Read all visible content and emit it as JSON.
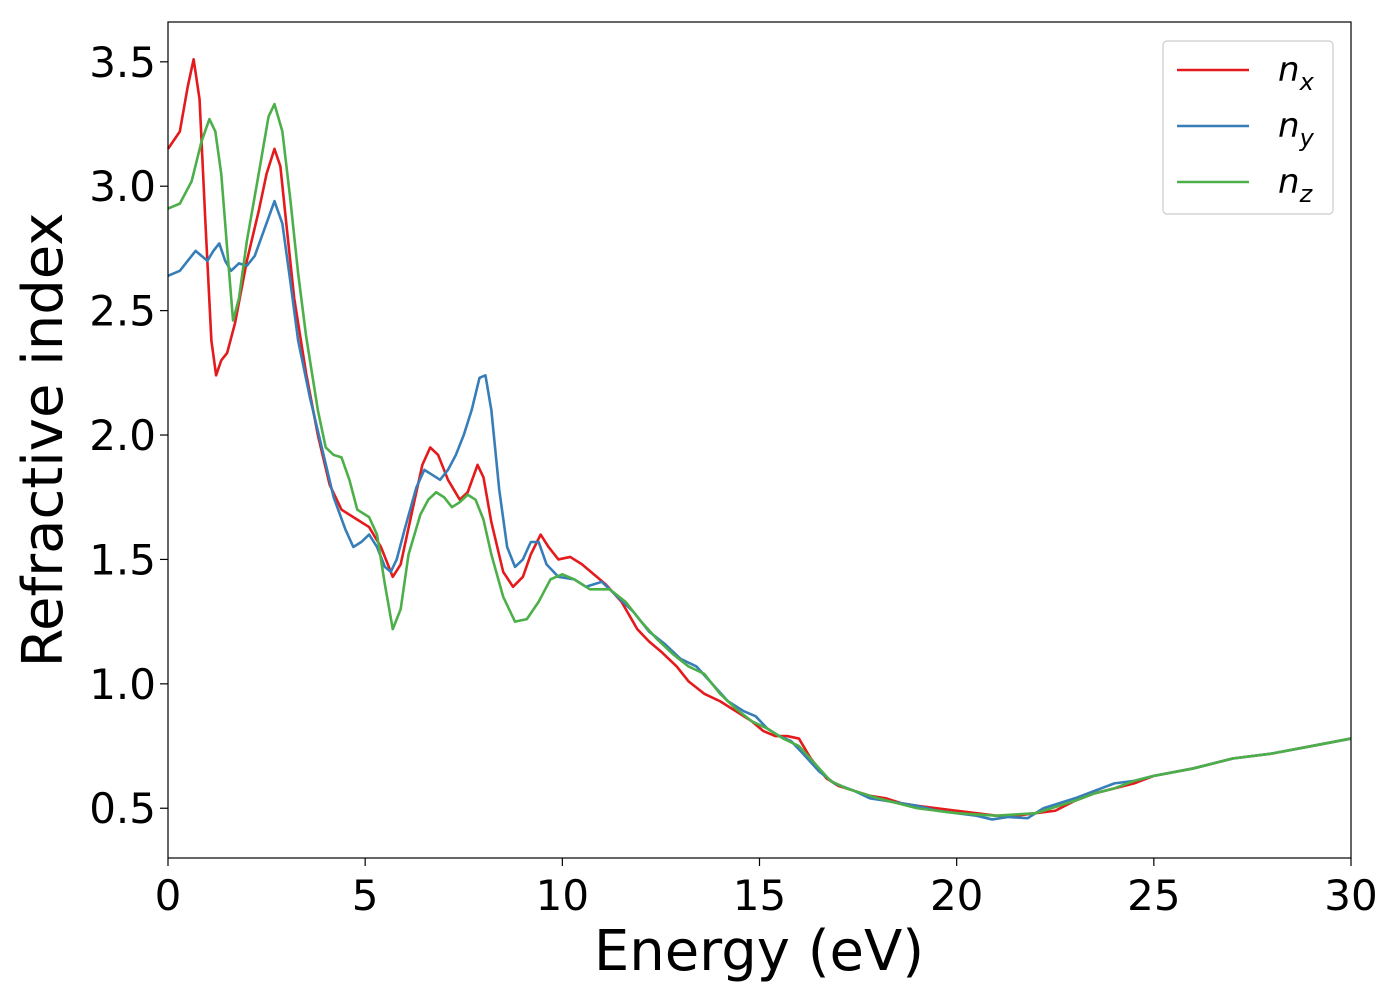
{
  "chart_data": {
    "type": "line",
    "title": "",
    "xlabel": "Energy (eV)",
    "ylabel": "Refractive index",
    "xlim": [
      0,
      30
    ],
    "ylim": [
      0.3,
      3.66
    ],
    "xticks": [
      0,
      5,
      10,
      15,
      20,
      25,
      30
    ],
    "xtick_labels": [
      "0",
      "5",
      "10",
      "15",
      "20",
      "25",
      "30"
    ],
    "yticks": [
      0.5,
      1.0,
      1.5,
      2.0,
      2.5,
      3.0,
      3.5
    ],
    "ytick_labels": [
      "0.5",
      "1.0",
      "1.5",
      "2.0",
      "2.5",
      "3.0",
      "3.5"
    ],
    "grid": false,
    "legend": {
      "position": "top-right"
    },
    "series": [
      {
        "name": "n",
        "subscript": "x",
        "color": "#e41a1c",
        "points": [
          [
            0,
            3.15
          ],
          [
            0.3,
            3.22
          ],
          [
            0.5,
            3.4
          ],
          [
            0.65,
            3.51
          ],
          [
            0.8,
            3.35
          ],
          [
            0.95,
            2.85
          ],
          [
            1.1,
            2.38
          ],
          [
            1.22,
            2.24
          ],
          [
            1.35,
            2.3
          ],
          [
            1.5,
            2.33
          ],
          [
            1.7,
            2.45
          ],
          [
            2.0,
            2.7
          ],
          [
            2.3,
            2.9
          ],
          [
            2.5,
            3.05
          ],
          [
            2.7,
            3.15
          ],
          [
            2.85,
            3.08
          ],
          [
            3.0,
            2.85
          ],
          [
            3.2,
            2.55
          ],
          [
            3.5,
            2.25
          ],
          [
            3.8,
            2.0
          ],
          [
            4.1,
            1.8
          ],
          [
            4.4,
            1.7
          ],
          [
            4.8,
            1.66
          ],
          [
            5.1,
            1.63
          ],
          [
            5.4,
            1.55
          ],
          [
            5.7,
            1.43
          ],
          [
            5.9,
            1.48
          ],
          [
            6.2,
            1.7
          ],
          [
            6.45,
            1.88
          ],
          [
            6.65,
            1.95
          ],
          [
            6.85,
            1.92
          ],
          [
            7.1,
            1.82
          ],
          [
            7.4,
            1.74
          ],
          [
            7.6,
            1.77
          ],
          [
            7.85,
            1.88
          ],
          [
            8.0,
            1.83
          ],
          [
            8.2,
            1.65
          ],
          [
            8.5,
            1.45
          ],
          [
            8.75,
            1.39
          ],
          [
            9.0,
            1.43
          ],
          [
            9.2,
            1.52
          ],
          [
            9.45,
            1.6
          ],
          [
            9.65,
            1.55
          ],
          [
            9.9,
            1.5
          ],
          [
            10.2,
            1.51
          ],
          [
            10.5,
            1.48
          ],
          [
            10.8,
            1.44
          ],
          [
            11.1,
            1.4
          ],
          [
            11.5,
            1.33
          ],
          [
            11.9,
            1.22
          ],
          [
            12.2,
            1.17
          ],
          [
            12.5,
            1.13
          ],
          [
            12.9,
            1.07
          ],
          [
            13.2,
            1.01
          ],
          [
            13.6,
            0.96
          ],
          [
            14.0,
            0.93
          ],
          [
            14.4,
            0.89
          ],
          [
            14.8,
            0.85
          ],
          [
            15.1,
            0.81
          ],
          [
            15.4,
            0.79
          ],
          [
            15.7,
            0.79
          ],
          [
            16.0,
            0.78
          ],
          [
            16.3,
            0.7
          ],
          [
            16.7,
            0.62
          ],
          [
            17.0,
            0.59
          ],
          [
            17.4,
            0.57
          ],
          [
            17.8,
            0.55
          ],
          [
            18.2,
            0.54
          ],
          [
            18.6,
            0.52
          ],
          [
            19.0,
            0.51
          ],
          [
            19.5,
            0.5
          ],
          [
            20.0,
            0.49
          ],
          [
            20.5,
            0.48
          ],
          [
            21.0,
            0.47
          ],
          [
            21.5,
            0.47
          ],
          [
            22.0,
            0.48
          ],
          [
            22.5,
            0.49
          ],
          [
            23.0,
            0.53
          ],
          [
            23.5,
            0.56
          ],
          [
            24.0,
            0.58
          ],
          [
            24.5,
            0.6
          ],
          [
            25.0,
            0.63
          ],
          [
            26.0,
            0.66
          ],
          [
            27.0,
            0.7
          ],
          [
            28.0,
            0.72
          ],
          [
            29.0,
            0.75
          ],
          [
            30.0,
            0.78
          ]
        ]
      },
      {
        "name": "n",
        "subscript": "y",
        "color": "#377eb8",
        "points": [
          [
            0,
            2.64
          ],
          [
            0.3,
            2.66
          ],
          [
            0.5,
            2.7
          ],
          [
            0.7,
            2.74
          ],
          [
            0.85,
            2.72
          ],
          [
            1.0,
            2.7
          ],
          [
            1.15,
            2.74
          ],
          [
            1.3,
            2.77
          ],
          [
            1.45,
            2.7
          ],
          [
            1.6,
            2.66
          ],
          [
            1.8,
            2.69
          ],
          [
            2.0,
            2.68
          ],
          [
            2.2,
            2.72
          ],
          [
            2.45,
            2.83
          ],
          [
            2.7,
            2.94
          ],
          [
            2.9,
            2.85
          ],
          [
            3.1,
            2.62
          ],
          [
            3.3,
            2.38
          ],
          [
            3.6,
            2.15
          ],
          [
            3.9,
            1.95
          ],
          [
            4.2,
            1.75
          ],
          [
            4.5,
            1.62
          ],
          [
            4.7,
            1.55
          ],
          [
            4.9,
            1.57
          ],
          [
            5.1,
            1.6
          ],
          [
            5.3,
            1.55
          ],
          [
            5.5,
            1.47
          ],
          [
            5.65,
            1.45
          ],
          [
            5.8,
            1.5
          ],
          [
            6.0,
            1.62
          ],
          [
            6.3,
            1.79
          ],
          [
            6.5,
            1.86
          ],
          [
            6.7,
            1.84
          ],
          [
            6.9,
            1.82
          ],
          [
            7.1,
            1.86
          ],
          [
            7.3,
            1.92
          ],
          [
            7.5,
            2.0
          ],
          [
            7.7,
            2.1
          ],
          [
            7.9,
            2.23
          ],
          [
            8.05,
            2.24
          ],
          [
            8.2,
            2.1
          ],
          [
            8.4,
            1.78
          ],
          [
            8.6,
            1.55
          ],
          [
            8.8,
            1.47
          ],
          [
            9.0,
            1.5
          ],
          [
            9.2,
            1.57
          ],
          [
            9.4,
            1.57
          ],
          [
            9.6,
            1.48
          ],
          [
            9.9,
            1.43
          ],
          [
            10.3,
            1.42
          ],
          [
            10.6,
            1.39
          ],
          [
            11.0,
            1.41
          ],
          [
            11.4,
            1.35
          ],
          [
            11.8,
            1.29
          ],
          [
            12.2,
            1.21
          ],
          [
            12.6,
            1.16
          ],
          [
            13.0,
            1.1
          ],
          [
            13.4,
            1.07
          ],
          [
            13.8,
            1.0
          ],
          [
            14.2,
            0.93
          ],
          [
            14.6,
            0.89
          ],
          [
            14.9,
            0.87
          ],
          [
            15.2,
            0.82
          ],
          [
            15.5,
            0.79
          ],
          [
            15.8,
            0.77
          ],
          [
            16.1,
            0.72
          ],
          [
            16.5,
            0.65
          ],
          [
            16.9,
            0.6
          ],
          [
            17.4,
            0.57
          ],
          [
            17.8,
            0.54
          ],
          [
            18.2,
            0.53
          ],
          [
            18.6,
            0.52
          ],
          [
            19.0,
            0.51
          ],
          [
            19.5,
            0.49
          ],
          [
            20.0,
            0.48
          ],
          [
            20.5,
            0.47
          ],
          [
            20.9,
            0.455
          ],
          [
            21.3,
            0.465
          ],
          [
            21.8,
            0.46
          ],
          [
            22.2,
            0.5
          ],
          [
            22.6,
            0.52
          ],
          [
            23.0,
            0.54
          ],
          [
            23.5,
            0.57
          ],
          [
            24.0,
            0.6
          ],
          [
            24.5,
            0.61
          ],
          [
            25.0,
            0.63
          ],
          [
            26.0,
            0.66
          ],
          [
            27.0,
            0.7
          ],
          [
            28.0,
            0.72
          ],
          [
            29.0,
            0.75
          ],
          [
            30.0,
            0.78
          ]
        ]
      },
      {
        "name": "n",
        "subscript": "z",
        "color": "#4daf4a",
        "points": [
          [
            0,
            2.91
          ],
          [
            0.3,
            2.93
          ],
          [
            0.6,
            3.02
          ],
          [
            0.85,
            3.18
          ],
          [
            1.05,
            3.27
          ],
          [
            1.2,
            3.22
          ],
          [
            1.35,
            3.05
          ],
          [
            1.5,
            2.75
          ],
          [
            1.65,
            2.46
          ],
          [
            1.8,
            2.55
          ],
          [
            2.0,
            2.78
          ],
          [
            2.3,
            3.05
          ],
          [
            2.55,
            3.28
          ],
          [
            2.7,
            3.33
          ],
          [
            2.9,
            3.22
          ],
          [
            3.1,
            2.95
          ],
          [
            3.3,
            2.65
          ],
          [
            3.5,
            2.4
          ],
          [
            3.8,
            2.1
          ],
          [
            4.0,
            1.95
          ],
          [
            4.2,
            1.92
          ],
          [
            4.4,
            1.91
          ],
          [
            4.6,
            1.82
          ],
          [
            4.8,
            1.7
          ],
          [
            5.1,
            1.67
          ],
          [
            5.3,
            1.6
          ],
          [
            5.5,
            1.4
          ],
          [
            5.7,
            1.22
          ],
          [
            5.9,
            1.3
          ],
          [
            6.1,
            1.52
          ],
          [
            6.4,
            1.68
          ],
          [
            6.6,
            1.74
          ],
          [
            6.8,
            1.77
          ],
          [
            7.0,
            1.75
          ],
          [
            7.2,
            1.71
          ],
          [
            7.4,
            1.73
          ],
          [
            7.6,
            1.76
          ],
          [
            7.8,
            1.74
          ],
          [
            8.0,
            1.66
          ],
          [
            8.2,
            1.52
          ],
          [
            8.5,
            1.35
          ],
          [
            8.8,
            1.25
          ],
          [
            9.1,
            1.26
          ],
          [
            9.4,
            1.33
          ],
          [
            9.7,
            1.42
          ],
          [
            10.0,
            1.44
          ],
          [
            10.3,
            1.42
          ],
          [
            10.7,
            1.38
          ],
          [
            11.2,
            1.38
          ],
          [
            11.6,
            1.33
          ],
          [
            12.0,
            1.25
          ],
          [
            12.4,
            1.18
          ],
          [
            12.8,
            1.12
          ],
          [
            13.2,
            1.07
          ],
          [
            13.6,
            1.04
          ],
          [
            14.0,
            0.96
          ],
          [
            14.4,
            0.9
          ],
          [
            14.8,
            0.85
          ],
          [
            15.2,
            0.82
          ],
          [
            15.6,
            0.78
          ],
          [
            16.0,
            0.75
          ],
          [
            16.4,
            0.68
          ],
          [
            16.8,
            0.61
          ],
          [
            17.2,
            0.58
          ],
          [
            17.6,
            0.56
          ],
          [
            18.0,
            0.54
          ],
          [
            18.5,
            0.52
          ],
          [
            19.0,
            0.5
          ],
          [
            19.5,
            0.49
          ],
          [
            20.0,
            0.48
          ],
          [
            20.5,
            0.475
          ],
          [
            21.0,
            0.47
          ],
          [
            21.5,
            0.475
          ],
          [
            22.0,
            0.48
          ],
          [
            22.4,
            0.5
          ],
          [
            23.0,
            0.53
          ],
          [
            23.5,
            0.56
          ],
          [
            24.0,
            0.58
          ],
          [
            24.5,
            0.61
          ],
          [
            25.0,
            0.63
          ],
          [
            26.0,
            0.66
          ],
          [
            27.0,
            0.7
          ],
          [
            28.0,
            0.72
          ],
          [
            29.0,
            0.75
          ],
          [
            30.0,
            0.78
          ]
        ]
      }
    ]
  }
}
